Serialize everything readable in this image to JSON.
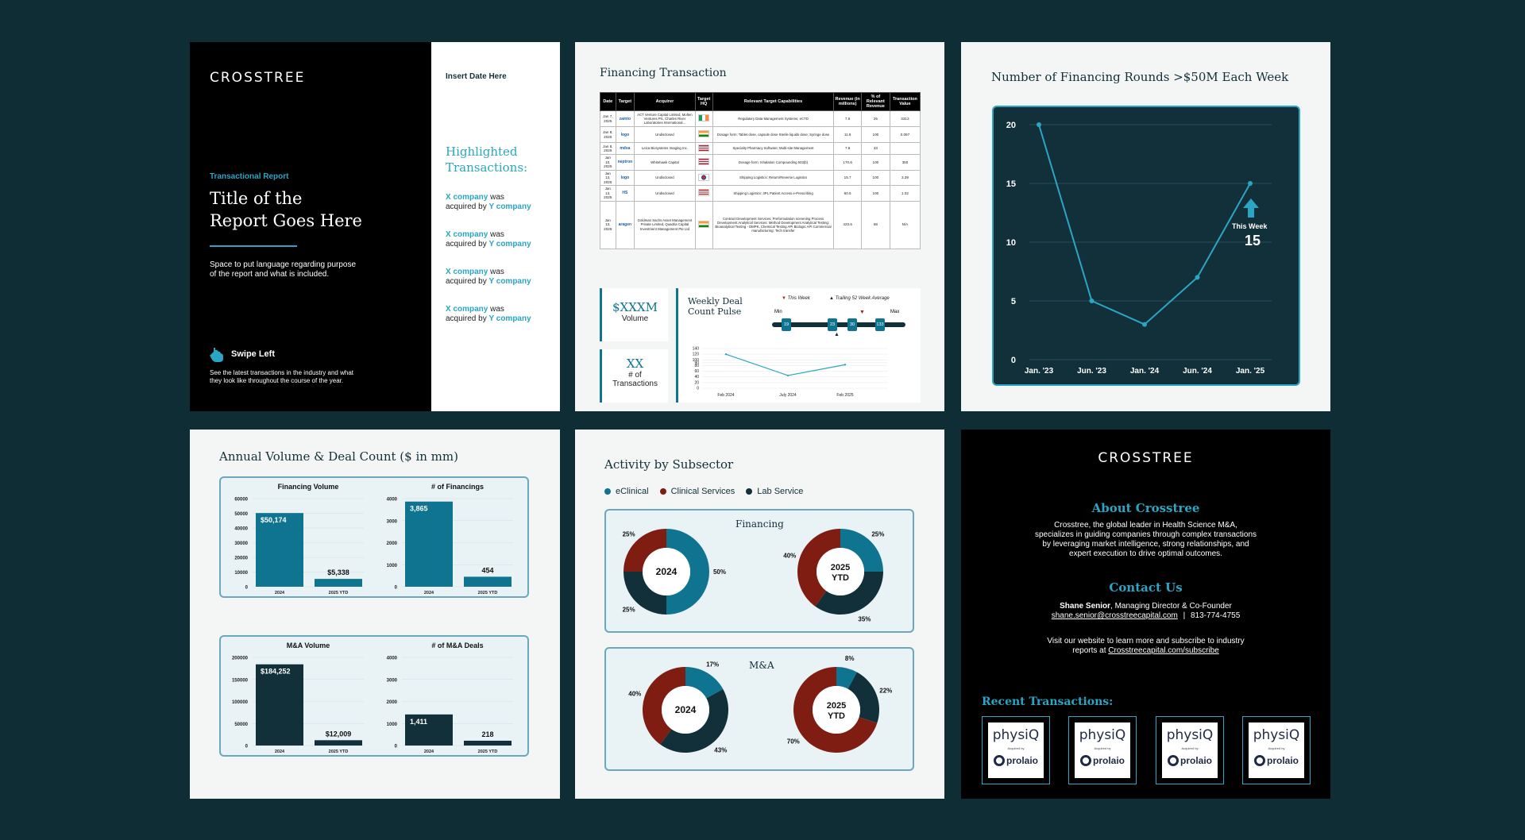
{
  "cover": {
    "brand": "CROSSTREE",
    "date": "Insert Date Here",
    "report_type": "Transactional Report",
    "title_line1": "Title of the",
    "title_line2": "Report Goes Here",
    "purpose_line1": "Space to put language regarding purpose",
    "purpose_line2": "of the report and what is included.",
    "swipe": "Swipe Left",
    "swipe_desc_line1": "See the latest transactions in the industry and what",
    "swipe_desc_line2": "they look like throughout the course of the year.",
    "highlight_title_line1": "Highlighted",
    "highlight_title_line2": "Transactions:",
    "highlights": [
      {
        "target": "X company",
        "was": "was",
        "acq": "acquired by",
        "acquirer": "Y company"
      },
      {
        "target": "X company",
        "was": "was",
        "acq": "acquired by",
        "acquirer": "Y company"
      },
      {
        "target": "X company",
        "was": "was",
        "acq": "acquired by",
        "acquirer": "Y company"
      },
      {
        "target": "X company",
        "was": "was",
        "acq": "acquired by",
        "acquirer": "Y company"
      }
    ]
  },
  "financing": {
    "title": "Financing Transaction",
    "headers": [
      "Date",
      "Target",
      "Acquirer",
      "Target HQ",
      "Relevant Target Capabilities",
      "Revenue (in millions)",
      "% of Relevant Revenue",
      "Transaction Value"
    ],
    "rows": [
      {
        "date": "Jan 7, 2025",
        "target": "zamto",
        "acquirer": "ACT Venture Capital Limited, Molten Ventures Plc, Charles River Laboratories International...",
        "hq": "IE",
        "cap": "Regulatory Data Management Systems; eCTD",
        "rev": "7.6",
        "pct": "25",
        "val": "3313"
      },
      {
        "date": "Jan 8, 2025",
        "target": "logo",
        "acquirer": "Undisclosed",
        "hq": "IN",
        "cap": "Dosage form: Tablet dose, capsule dose Sterile liquids dose; Syringe dose",
        "rev": "11.6",
        "pct": "100",
        "val": "0.087"
      },
      {
        "date": "Jan 8, 2025",
        "target": "mdxa",
        "acquirer": "Leica Biosystems Imaging Inc.",
        "hq": "US",
        "cap": "Specialty Pharmacy Software; Multi-site Management",
        "rev": "7.6",
        "pct": "33",
        "val": ""
      },
      {
        "date": "Jan 10, 2025",
        "target": "neptron",
        "acquirer": "Whitehawk Capital",
        "hq": "US",
        "cap": "Dosage form: Inhalation Compounding 503(b)",
        "rev": "170.6",
        "pct": "100",
        "val": "350"
      },
      {
        "date": "Jan 13, 2025",
        "target": "logo",
        "acquirer": "Undisclosed",
        "hq": "KR",
        "cap": "Shipping Logistics: Return/Reverse Logistics",
        "rev": "15.7",
        "pct": "100",
        "val": "3.39"
      },
      {
        "date": "Jan 13, 2025",
        "target": "HS",
        "acquirer": "Undisclosed",
        "hq": "MY",
        "cap": "Shipping Logistics: 3PL Patient Access e-Prescribing",
        "rev": "60.5",
        "pct": "100",
        "val": "1.02"
      },
      {
        "date": "Jan 13, 2025",
        "target": "aragen",
        "acquirer": "Goldman Sachs Asset Management Private Limited, Quadria Capital Investment Management Pte Ltd",
        "hq": "IN",
        "cap": "Contract Development Services: Preformulation screening Process Development Analytical Services: Method Development Analytical Testing: Bioanalytical Testing - DMPK, Chemical Testing API Biologic API Commercial manufacturing: Tech transfer",
        "rev": "423.6",
        "pct": "58",
        "val": "N/A"
      }
    ],
    "volume_value": "$XXXM",
    "volume_label": "Volume",
    "count_value": "XX",
    "count_label1": "# of",
    "count_label2": "Transactions",
    "pulse_title_line1": "Weekly Deal",
    "pulse_title_line2": "Count Pulse",
    "pulse_this_week": "This Week",
    "pulse_trailing": "Trailing 52 Week Average",
    "pulse_min_label": "Min",
    "pulse_max_label": "Max",
    "pulse_markers": [
      "19",
      "23",
      "30",
      "133"
    ],
    "pulse_line": {
      "x": [
        "Feb 2024",
        "July 2024",
        "Feb 2025"
      ],
      "y_ticks": [
        "140",
        "120",
        "100",
        "90",
        "80",
        "60",
        "40",
        "20",
        "0"
      ],
      "values": [
        120,
        45,
        83
      ]
    }
  },
  "rounds": {
    "title": "Number of Financing Rounds >$50M Each Week",
    "callout_label": "This Week",
    "callout_value": "15"
  },
  "annual": {
    "title": "Annual Volume & Deal Count ($ in mm)"
  },
  "subsector": {
    "title": "Activity by Subsector",
    "legend": [
      "eClinical",
      "Clinical Services",
      "Lab Service"
    ],
    "colors": [
      "#0e7490",
      "#7f1d12",
      "#12303a"
    ],
    "financing_label": "Financing",
    "ma_label": "M&A",
    "year_2024": "2024",
    "year_2025_line1": "2025",
    "year_2025_line2": "YTD"
  },
  "about": {
    "brand": "CROSSTREE",
    "heading": "About Crosstree",
    "body_line1": "Crosstree, the global leader in Health Science M&A,",
    "body_line2": "specializes in guiding companies through complex transactions",
    "body_line3": "by leveraging market intelligence, strong relationships, and",
    "body_line4": "expert execution to drive optimal outcomes.",
    "contact_heading": "Contact Us",
    "contact_name": "Shane Senior",
    "contact_role": ", Managing Director & Co-Founder",
    "contact_email": "shane.senior@crosstreecapital.com",
    "contact_sep": "|",
    "contact_phone": "813-774-4755",
    "visit_line1": "Visit our website to learn more and subscribe to industry",
    "visit_prefix": "reports at ",
    "visit_link": "Crosstreecapital.com/subscribe",
    "recent_heading": "Recent Transactions:",
    "thumb_top": "physiQ",
    "thumb_mid": "Acquired by",
    "thumb_bottom": "prolaio"
  },
  "chart_data": [
    {
      "type": "line",
      "title": "Number of Financing Rounds >$50M Each Week",
      "x": [
        "Jan. '23",
        "Jun. '23",
        "Jan. '24",
        "Jun. '24",
        "Jan. '25"
      ],
      "values": [
        20,
        5,
        3,
        7,
        15
      ],
      "ylim": [
        0,
        20
      ],
      "y_ticks": [
        0,
        5,
        10,
        15,
        20
      ],
      "grid": true
    },
    {
      "type": "bar",
      "title": "Financing Volume",
      "categories": [
        "2024",
        "2025 YTD"
      ],
      "values": [
        50174,
        5338
      ],
      "data_labels": [
        "$50,174",
        "$5,338"
      ],
      "ylim": [
        0,
        60000
      ],
      "y_ticks": [
        0,
        10000,
        20000,
        30000,
        40000,
        50000,
        60000
      ]
    },
    {
      "type": "bar",
      "title": "# of Financings",
      "categories": [
        "2024",
        "2025 YTD"
      ],
      "values": [
        3865,
        454
      ],
      "data_labels": [
        "3,865",
        "454"
      ],
      "ylim": [
        0,
        4000
      ],
      "y_ticks": [
        0,
        1000,
        2000,
        3000,
        4000
      ]
    },
    {
      "type": "bar",
      "title": "M&A Volume",
      "categories": [
        "2024",
        "2025 YTD"
      ],
      "values": [
        184252,
        12009
      ],
      "data_labels": [
        "$184,252",
        "$12,009"
      ],
      "ylim": [
        0,
        200000
      ],
      "y_ticks": [
        0,
        50000,
        100000,
        150000,
        200000
      ]
    },
    {
      "type": "bar",
      "title": "# of M&A Deals",
      "categories": [
        "2024",
        "2025 YTD"
      ],
      "values": [
        1411,
        218
      ],
      "data_labels": [
        "1,411",
        "218"
      ],
      "ylim": [
        0,
        4000
      ],
      "y_ticks": [
        0,
        1000,
        2000,
        3000,
        4000
      ]
    },
    {
      "type": "pie",
      "title": "Financing 2024",
      "categories": [
        "eClinical",
        "Clinical Services",
        "Lab Service"
      ],
      "values": [
        50,
        25,
        25
      ],
      "data_labels": [
        "50%",
        "25%",
        "25%"
      ]
    },
    {
      "type": "pie",
      "title": "Financing 2025 YTD",
      "categories": [
        "eClinical",
        "Clinical Services",
        "Lab Service"
      ],
      "values": [
        25,
        40,
        35
      ],
      "data_labels": [
        "25%",
        "40%",
        "35%"
      ]
    },
    {
      "type": "pie",
      "title": "M&A 2024",
      "categories": [
        "eClinical",
        "Clinical Services",
        "Lab Service"
      ],
      "values": [
        17,
        40,
        43
      ],
      "data_labels": [
        "17%",
        "40%",
        "43%"
      ]
    },
    {
      "type": "pie",
      "title": "M&A 2025 YTD",
      "categories": [
        "eClinical",
        "Clinical Services",
        "Lab Service"
      ],
      "values": [
        8,
        70,
        22
      ],
      "data_labels": [
        "8%",
        "70%",
        "22%"
      ]
    }
  ]
}
